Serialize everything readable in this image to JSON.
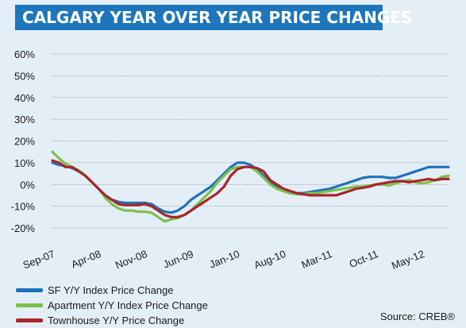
{
  "title": "CALGARY YEAR OVER YEAR PRICE CHANGES",
  "source": "Source: CREB®",
  "colors": {
    "background": "#e4eef7",
    "title_bg": "#1d76bb",
    "grid": "#3a3a3a"
  },
  "chart_data": {
    "type": "line",
    "title": "CALGARY YEAR OVER YEAR PRICE CHANGES",
    "xlabel": "",
    "ylabel": "",
    "ylim": [
      -20,
      60
    ],
    "yticks": [
      "60%",
      "50%",
      "40%",
      "30%",
      "20%",
      "10%",
      "0%",
      "-10%",
      "-20%"
    ],
    "yticks_values": [
      60,
      50,
      40,
      30,
      20,
      10,
      0,
      -10,
      -20
    ],
    "grid": true,
    "legend_position": "bottom-left",
    "x": [
      "Sep-07",
      "Oct-07",
      "Nov-07",
      "Dec-07",
      "Jan-08",
      "Feb-08",
      "Mar-08",
      "Apr-08",
      "May-08",
      "Jun-08",
      "Jul-08",
      "Aug-08",
      "Sep-08",
      "Oct-08",
      "Nov-08",
      "Dec-08",
      "Jan-09",
      "Feb-09",
      "Mar-09",
      "Apr-09",
      "May-09",
      "Jun-09",
      "Jul-09",
      "Aug-09",
      "Sep-09",
      "Oct-09",
      "Nov-09",
      "Dec-09",
      "Jan-10",
      "Feb-10",
      "Mar-10",
      "Apr-10",
      "May-10",
      "Jun-10",
      "Jul-10",
      "Aug-10",
      "Sep-10",
      "Oct-10",
      "Nov-10",
      "Dec-10",
      "Jan-11",
      "Feb-11",
      "Mar-11",
      "Apr-11",
      "May-11",
      "Jun-11",
      "Jul-11",
      "Aug-11",
      "Sep-11",
      "Oct-11",
      "Nov-11",
      "Dec-11",
      "Jan-12",
      "Feb-12",
      "Mar-12",
      "Apr-12",
      "May-12",
      "Jun-12",
      "Jul-12",
      "Aug-12",
      "Sep-12"
    ],
    "xtick_labels": [
      "Sep-07",
      "Apr-08",
      "Nov-08",
      "Jun-09",
      "Jan-10",
      "Aug-10",
      "Mar-11",
      "Oct-11",
      "May-12"
    ],
    "series": [
      {
        "name": "SF Y/Y Index Price Change",
        "color": "#1e73b8",
        "values": [
          10,
          9,
          8.5,
          7.5,
          6,
          4,
          1,
          -2,
          -5,
          -7,
          -8,
          -8.5,
          -8.5,
          -8.5,
          -8.5,
          -9,
          -11,
          -12.5,
          -13,
          -12,
          -10,
          -7,
          -5,
          -3,
          -1,
          2,
          5,
          8,
          10,
          10,
          9,
          7,
          4,
          1,
          -1,
          -3,
          -4,
          -4,
          -4,
          -3.5,
          -3,
          -2.5,
          -2,
          -1,
          0,
          1,
          2,
          3,
          3.5,
          3.5,
          3.5,
          3,
          3,
          4,
          5,
          6,
          7,
          8,
          8,
          8,
          8
        ]
      },
      {
        "name": "Apartment Y/Y Index Price Change",
        "color": "#7cc14a",
        "values": [
          15,
          12,
          9.5,
          8,
          6.5,
          4,
          1,
          -2,
          -6,
          -9,
          -11,
          -12,
          -12,
          -12.5,
          -12.5,
          -13,
          -15,
          -17,
          -16,
          -15.5,
          -14,
          -12,
          -9,
          -6,
          -3,
          1,
          4,
          7,
          8,
          8,
          8,
          6,
          3,
          0,
          -2,
          -3,
          -4,
          -4.5,
          -4.5,
          -4,
          -4,
          -3.5,
          -3,
          -2.5,
          -2,
          -1.5,
          -1,
          -1,
          -0.5,
          0,
          0,
          -0.5,
          0.5,
          1.5,
          2,
          1,
          0.5,
          1,
          2,
          3.5,
          4
        ]
      },
      {
        "name": "Townhouse Y/Y Price Change",
        "color": "#a8262c",
        "values": [
          11,
          10,
          8,
          8,
          6,
          4,
          1,
          -2,
          -5,
          -7,
          -9,
          -9.5,
          -9.5,
          -9.5,
          -9,
          -10,
          -12,
          -14,
          -15,
          -15,
          -14,
          -12,
          -10,
          -8,
          -6,
          -4,
          -1,
          4,
          7,
          8,
          8,
          7.5,
          6,
          2,
          0,
          -2,
          -3,
          -4,
          -4.5,
          -5,
          -5,
          -5,
          -5,
          -5,
          -4,
          -3,
          -2,
          -1.5,
          -1,
          0,
          0.5,
          1,
          1.5,
          1.5,
          1,
          1.5,
          2,
          2.5,
          2,
          2.5,
          2.5
        ]
      }
    ]
  }
}
